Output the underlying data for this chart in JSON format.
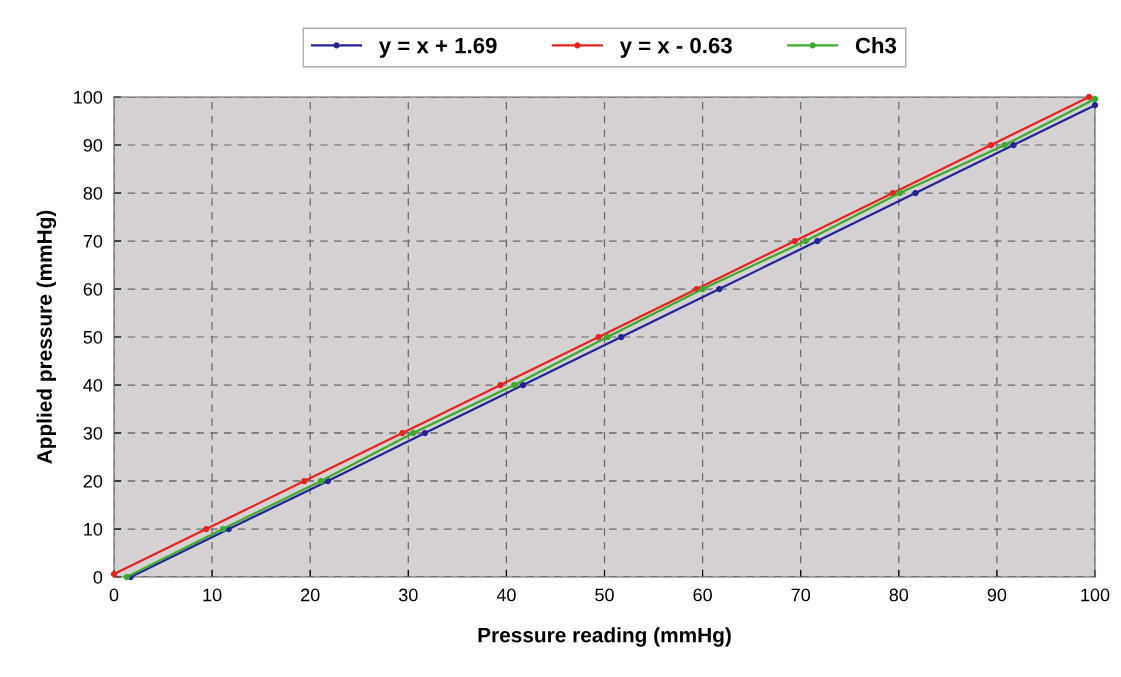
{
  "chart_data": {
    "type": "line",
    "xlabel": "Pressure reading (mmHg)",
    "ylabel": "Applied pressure (mmHg)",
    "xlim": [
      0,
      100
    ],
    "ylim": [
      0,
      100
    ],
    "xticks": [
      0,
      10,
      20,
      30,
      40,
      50,
      60,
      70,
      80,
      90,
      100
    ],
    "yticks": [
      0,
      10,
      20,
      30,
      40,
      50,
      60,
      70,
      80,
      90,
      100
    ],
    "grid": true,
    "legend": "top",
    "marker": "circle",
    "line_style": "solid",
    "series": [
      {
        "name": "y = x + 1.69",
        "color": "#23239a",
        "x": [
          1.7,
          11.7,
          21.8,
          31.7,
          41.7,
          51.7,
          61.7,
          71.7,
          81.7,
          91.7,
          100
        ],
        "values": [
          0,
          10,
          20,
          30,
          40,
          50,
          60,
          70,
          80,
          90,
          98.3
        ]
      },
      {
        "name": "y = x - 0.63",
        "color": "#e8231e",
        "x": [
          0,
          9.4,
          19.4,
          29.4,
          39.4,
          49.4,
          59.4,
          69.4,
          79.4,
          89.4,
          99.4
        ],
        "values": [
          0.6,
          10,
          20,
          30,
          40,
          50,
          60,
          70,
          80,
          90,
          100
        ]
      },
      {
        "name": "Ch3",
        "color": "#3cab2c",
        "x": [
          1.3,
          11.1,
          21.1,
          30.5,
          40.8,
          50.3,
          60.0,
          70.5,
          80.1,
          90.8,
          100
        ],
        "values": [
          0,
          10,
          20,
          30,
          40,
          50,
          60,
          70,
          80,
          90,
          99.6
        ]
      }
    ]
  }
}
